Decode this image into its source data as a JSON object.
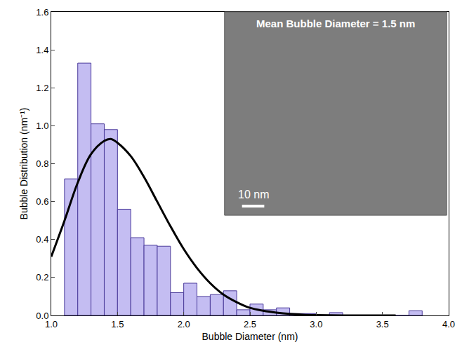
{
  "chart_data": {
    "type": "histogram",
    "x_label": "Bubble Diameter (nm)",
    "y_label": "Bubble Distribution (nm⁻¹)",
    "series": [
      {
        "type": "bar",
        "color": "#c4bdf2",
        "bins": [
          1.1,
          1.2,
          1.3,
          1.4,
          1.5,
          1.6,
          1.7,
          1.8,
          1.9,
          2.0,
          2.1,
          2.2,
          2.3,
          2.4,
          2.5,
          2.6,
          2.7,
          2.8,
          2.9,
          3.0,
          3.1,
          3.2,
          3.3,
          3.4,
          3.5,
          3.6,
          3.7,
          3.8
        ],
        "values": [
          0.72,
          1.33,
          1.01,
          0.98,
          0.56,
          0.41,
          0.37,
          0.365,
          0.12,
          0.17,
          0.1,
          0.11,
          0.13,
          0.03,
          0.06,
          0.03,
          0.04,
          0.01,
          0.01,
          0.0,
          0.015,
          0.0,
          0.0,
          0.0,
          0.0,
          0.0,
          0.025
        ]
      },
      {
        "type": "line",
        "color": "#000000",
        "x": [
          1.0,
          1.1,
          1.2,
          1.3,
          1.4,
          1.45,
          1.5,
          1.6,
          1.7,
          1.8,
          1.9,
          2.0,
          2.1,
          2.2,
          2.3,
          2.4,
          2.5,
          2.6,
          2.7,
          2.8,
          2.9,
          3.0,
          3.2,
          3.6
        ],
        "values": [
          0.31,
          0.5,
          0.7,
          0.85,
          0.92,
          0.93,
          0.91,
          0.84,
          0.73,
          0.6,
          0.47,
          0.35,
          0.25,
          0.17,
          0.11,
          0.07,
          0.04,
          0.025,
          0.015,
          0.008,
          0.004,
          0.002,
          0.0,
          0.0
        ]
      }
    ],
    "xlim": [
      1.0,
      4.0
    ],
    "xticks": [
      {
        "value": 1.0,
        "label": "1.0"
      },
      {
        "value": 1.5,
        "label": "1.5"
      },
      {
        "value": 2.0,
        "label": "2.0"
      },
      {
        "value": 2.5,
        "label": "2.5"
      },
      {
        "value": 3.0,
        "label": "3.0"
      },
      {
        "value": 3.5,
        "label": "3.5"
      },
      {
        "value": 4.0,
        "label": "4.0"
      }
    ],
    "ylim": [
      0.0,
      1.6
    ],
    "yticks": [
      {
        "value": 0.0,
        "label": "0.0"
      },
      {
        "value": 0.2,
        "label": "0.2"
      },
      {
        "value": 0.4,
        "label": "0.4"
      },
      {
        "value": 0.6,
        "label": "0.6"
      },
      {
        "value": 0.8,
        "label": "0.8"
      },
      {
        "value": 1.0,
        "label": "1.0"
      },
      {
        "value": 1.2,
        "label": "1.2"
      },
      {
        "value": 1.4,
        "label": "1.4"
      },
      {
        "value": 1.6,
        "label": "1.6"
      }
    ],
    "grid": false,
    "inset": {
      "text": "Mean Bubble Diameter = 1.5 nm",
      "scale_bar": "10 nm"
    }
  }
}
